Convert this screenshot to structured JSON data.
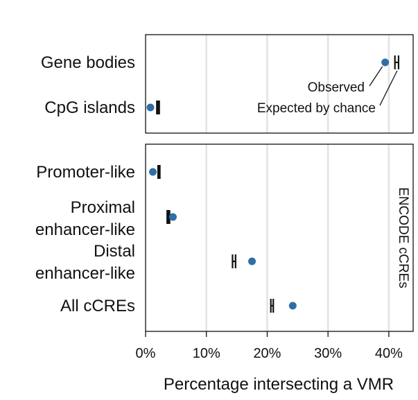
{
  "chart_data": {
    "type": "scatter",
    "xlabel": "Percentage intersecting a VMR",
    "xlim": [
      0,
      44
    ],
    "x_ticks": [
      0,
      10,
      20,
      30,
      40
    ],
    "x_tick_labels": [
      "0%",
      "10%",
      "20%",
      "30%",
      "40%"
    ],
    "grid": true,
    "color_observed": "#2f6fa8",
    "color_expected": "#111111",
    "annotations": {
      "observed": "Observed",
      "expected": "Expected by chance"
    },
    "panels": [
      {
        "side_label": "",
        "rows": [
          {
            "label_lines": [
              "Gene bodies"
            ],
            "observed": 39.4,
            "expected_low": 41.0,
            "expected_high": 41.6
          },
          {
            "label_lines": [
              "CpG islands"
            ],
            "observed": 0.8,
            "expected_low": 1.9,
            "expected_high": 2.2
          }
        ]
      },
      {
        "side_label": "ENCODE cCREs",
        "rows": [
          {
            "label_lines": [
              "Promoter-like"
            ],
            "observed": 1.2,
            "expected_low": 2.1,
            "expected_high": 2.3
          },
          {
            "label_lines": [
              "Proximal",
              "enhancer-like"
            ],
            "observed": 4.5,
            "expected_low": 3.6,
            "expected_high": 3.9
          },
          {
            "label_lines": [
              "Distal",
              "enhancer-like"
            ],
            "observed": 17.5,
            "expected_low": 14.3,
            "expected_high": 14.8
          },
          {
            "label_lines": [
              "All cCREs"
            ],
            "observed": 24.2,
            "expected_low": 20.6,
            "expected_high": 21.0
          }
        ]
      }
    ]
  }
}
